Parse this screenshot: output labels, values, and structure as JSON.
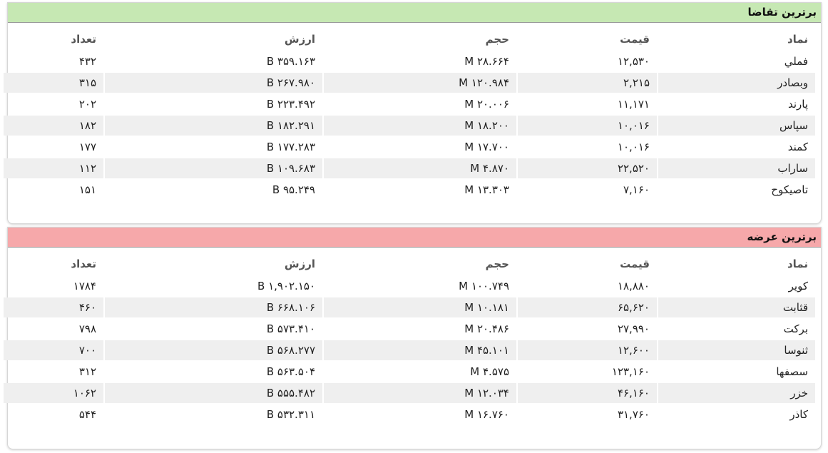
{
  "panels": [
    {
      "title": "برترین تقاضا",
      "headers": [
        "نماد",
        "قیمت",
        "حجم",
        "ارزش",
        "تعداد"
      ],
      "rows": [
        [
          "فملي",
          "۱۲,۵۳۰",
          "۲۸.۶۶۴ M",
          "۳۵۹.۱۶۳ B",
          "۴۳۲"
        ],
        [
          "وبصادر",
          "۲,۲۱۵",
          "۱۲۰.۹۸۴ M",
          "۲۶۷.۹۸۰ B",
          "۳۱۵"
        ],
        [
          "پارند",
          "۱۱,۱۷۱",
          "۲۰.۰۰۶ M",
          "۲۲۳.۴۹۲ B",
          "۲۰۲"
        ],
        [
          "سپاس",
          "۱۰,۰۱۶",
          "۱۸.۲۰۰ M",
          "۱۸۲.۲۹۱ B",
          "۱۸۲"
        ],
        [
          "کمند",
          "۱۰,۰۱۶",
          "۱۷.۷۰۰ M",
          "۱۷۷.۲۸۳ B",
          "۱۷۷"
        ],
        [
          "ساراب",
          "۲۲,۵۲۰",
          "۴.۸۷۰ M",
          "۱۰۹.۶۸۳ B",
          "۱۱۲"
        ],
        [
          "تاصیکوح",
          "۷,۱۶۰",
          "۱۳.۳۰۳ M",
          "۹۵.۲۴۹ B",
          "۱۵۱"
        ]
      ]
    },
    {
      "title": "برترین عرضه",
      "headers": [
        "نماد",
        "قیمت",
        "حجم",
        "ارزش",
        "تعداد"
      ],
      "rows": [
        [
          "کویر",
          "۱۸,۸۸۰",
          "۱۰۰.۷۴۹ M",
          "۱,۹۰۲.۱۵۰ B",
          "۱۷۸۴"
        ],
        [
          "قثابت",
          "۶۵,۶۲۰",
          "۱۰.۱۸۱ M",
          "۶۶۸.۱۰۶ B",
          "۴۶۰"
        ],
        [
          "برکت",
          "۲۷,۹۹۰",
          "۲۰.۴۸۶ M",
          "۵۷۳.۴۱۰ B",
          "۷۹۸"
        ],
        [
          "ثنوسا",
          "۱۲,۶۰۰",
          "۴۵.۱۰۱ M",
          "۵۶۸.۲۷۷ B",
          "۷۰۰"
        ],
        [
          "سصفها",
          "۱۲۳,۱۶۰",
          "۴.۵۷۵ M",
          "۵۶۳.۵۰۴ B",
          "۳۱۲"
        ],
        [
          "خزر",
          "۴۶,۱۶۰",
          "۱۲.۰۳۴ M",
          "۵۵۵.۴۸۲ B",
          "۱۰۶۲"
        ],
        [
          "کاذر",
          "۳۱,۷۶۰",
          "۱۶.۷۶۰ M",
          "۵۳۲.۳۱۱ B",
          "۵۴۴"
        ]
      ]
    }
  ]
}
